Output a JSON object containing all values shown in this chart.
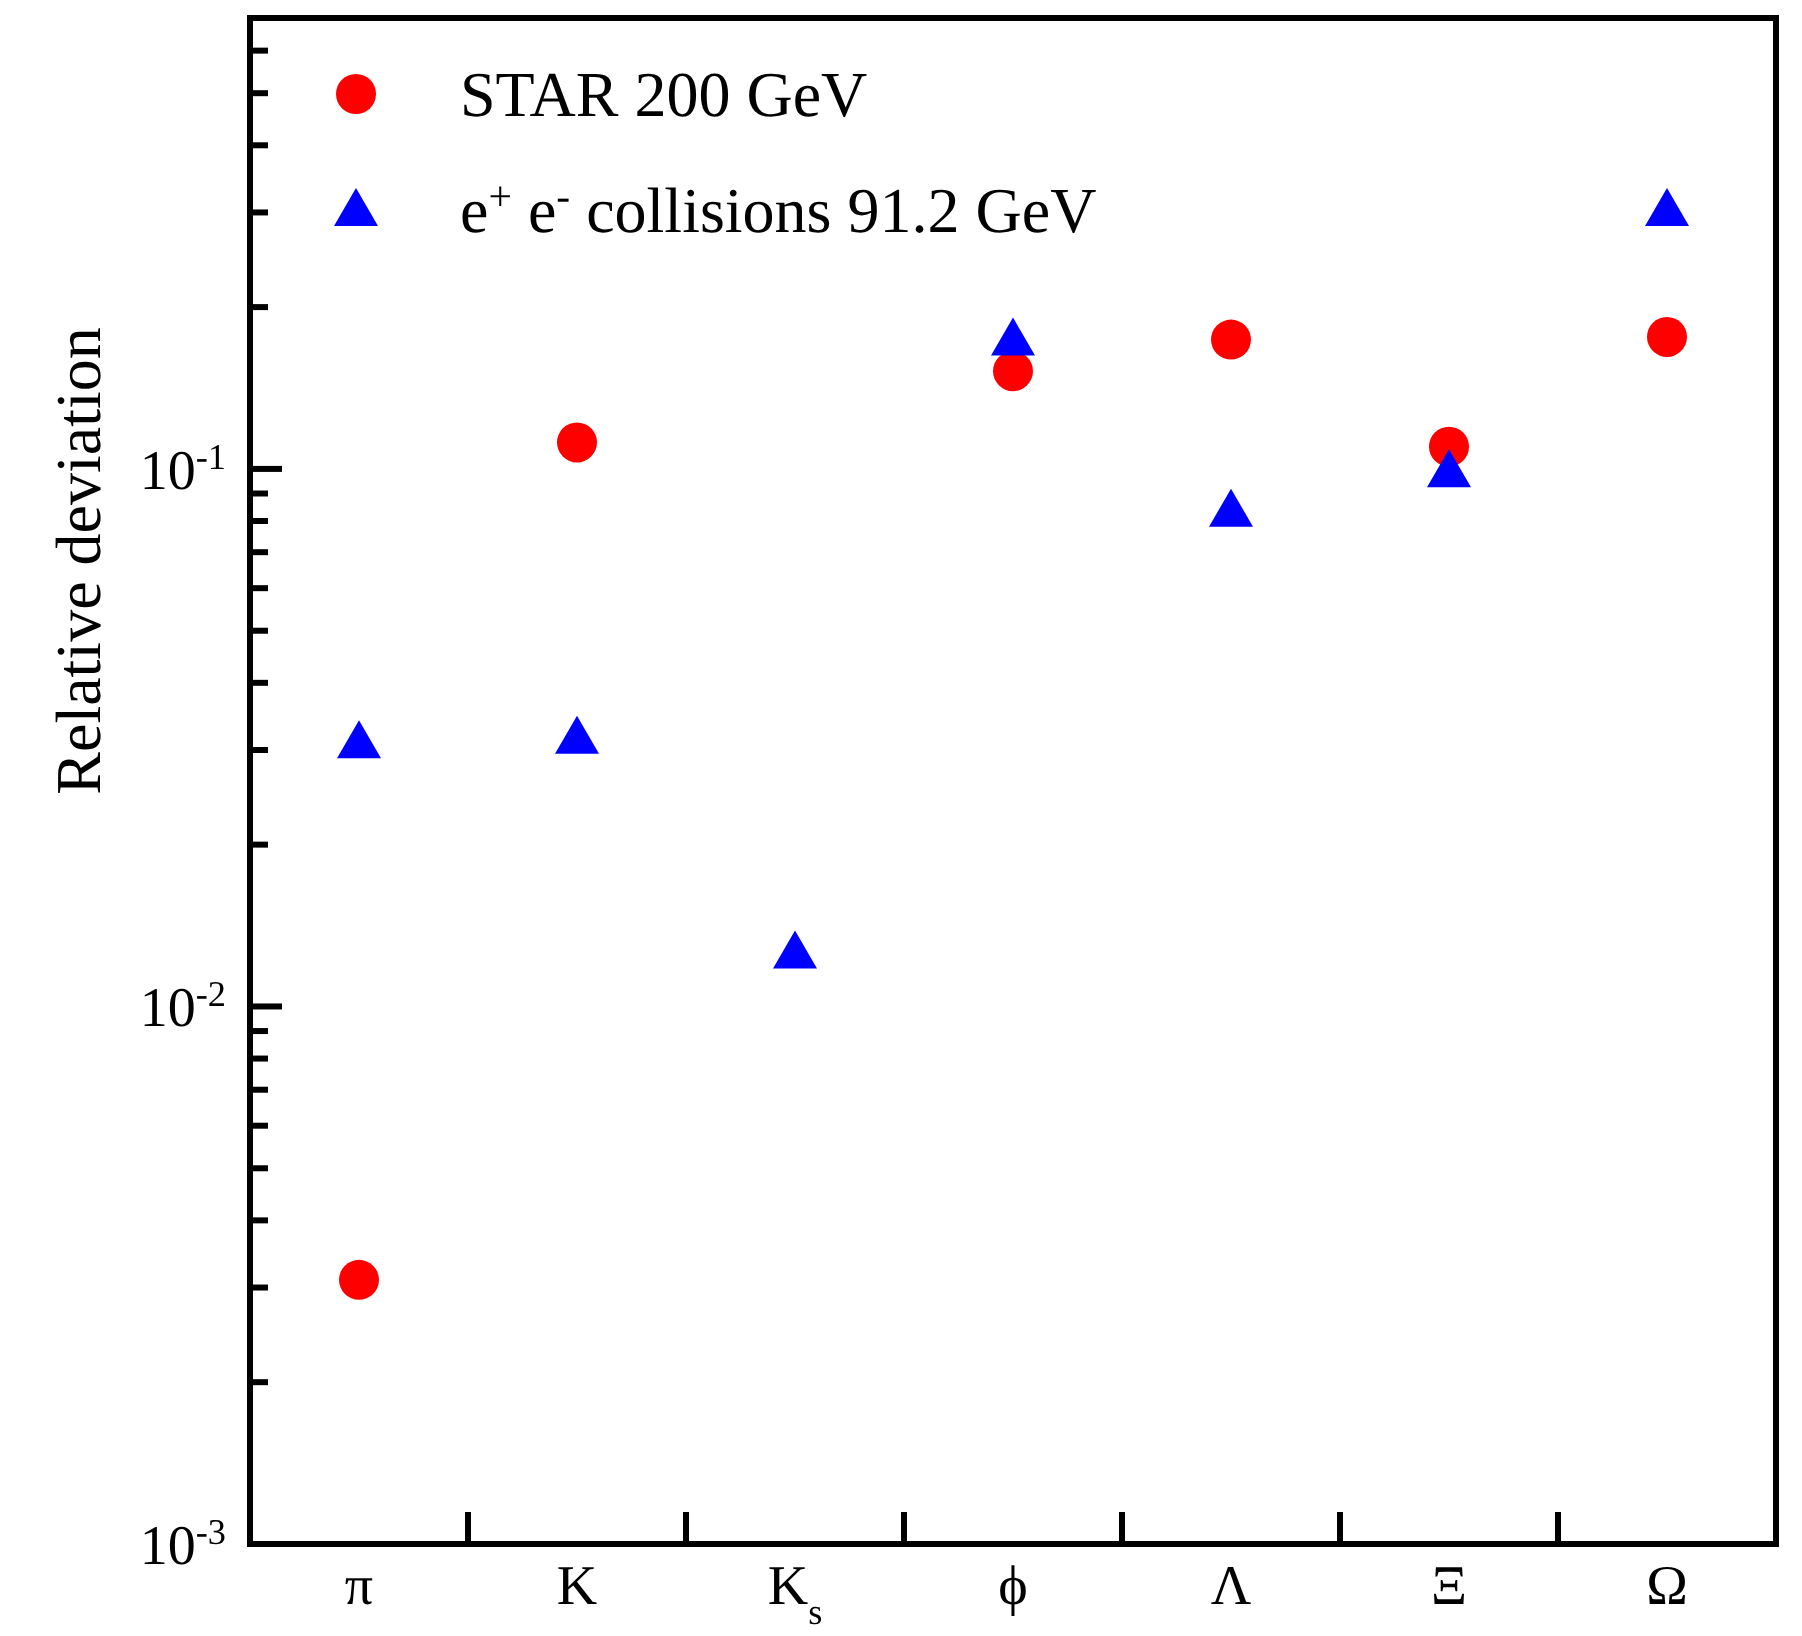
{
  "chart_data": {
    "type": "scatter",
    "ylabel": "Relative deviation",
    "categories": [
      "π",
      "K",
      "K$_{s}$",
      "ϕ",
      "Λ",
      "Ξ",
      "Ω"
    ],
    "log": "y",
    "ylim": [
      0.001,
      0.69
    ],
    "yticks": [
      {
        "value": 0.001,
        "label": "10$^{-3}$"
      },
      {
        "value": 0.002,
        "label": null
      },
      {
        "value": 0.003,
        "label": null
      },
      {
        "value": 0.004,
        "label": null
      },
      {
        "value": 0.005,
        "label": null
      },
      {
        "value": 0.006,
        "label": null
      },
      {
        "value": 0.007,
        "label": null
      },
      {
        "value": 0.008,
        "label": null
      },
      {
        "value": 0.009,
        "label": null
      },
      {
        "value": 0.01,
        "label": "10$^{-2}$"
      },
      {
        "value": 0.02,
        "label": null
      },
      {
        "value": 0.03,
        "label": null
      },
      {
        "value": 0.04,
        "label": null
      },
      {
        "value": 0.05,
        "label": null
      },
      {
        "value": 0.06,
        "label": null
      },
      {
        "value": 0.07,
        "label": null
      },
      {
        "value": 0.08,
        "label": null
      },
      {
        "value": 0.09,
        "label": null
      },
      {
        "value": 0.1,
        "label": "10$^{-1}$"
      },
      {
        "value": 0.2,
        "label": null
      },
      {
        "value": 0.3,
        "label": null
      },
      {
        "value": 0.4,
        "label": null
      },
      {
        "value": 0.5,
        "label": null
      },
      {
        "value": 0.6,
        "label": null
      }
    ],
    "grid": false,
    "legend": "top left",
    "series": [
      {
        "name": "STAR 200 GeV",
        "color": "#ff0000",
        "marker": "circle",
        "values": [
          0.0031,
          0.112,
          null,
          0.152,
          0.174,
          0.11,
          0.176
        ]
      },
      {
        "name": "e$^{+}$ e$^{-}$ collisions 91.2 GeV",
        "color": "#0000ff",
        "marker": "triangle",
        "values": [
          0.031,
          0.0316,
          0.0126,
          0.174,
          0.0836,
          0.099,
          0.303
        ]
      }
    ]
  }
}
